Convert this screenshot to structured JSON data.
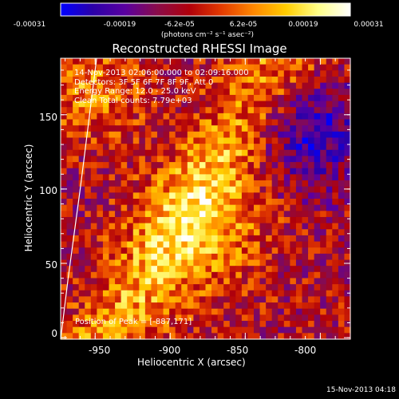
{
  "colorbar": {
    "tick_labels": [
      "-0.00031",
      "-0.00019",
      "-6.2e-05",
      "6.2e-05",
      "0.00019",
      "0.00031"
    ],
    "units": "(photons cm⁻² s⁻¹ asec⁻²)",
    "colormap": [
      "#0000ff",
      "#2b00a8",
      "#5a00a0",
      "#8a0c4a",
      "#b0000a",
      "#e33a00",
      "#ff8800",
      "#ffcc00",
      "#ffff88",
      "#ffffff"
    ]
  },
  "title": "Reconstructed RHESSI Image",
  "info": {
    "line1": "14-Nov-2013 02:06:00.000 to 02:09:16.000",
    "line2": "Detectors: 3F 5F 6F 7F 8F 9F, Att 0",
    "line3": "Energy Range: 12.0 - 25.0 keV",
    "line4": "Clean      Total counts: 7.79e+03",
    "peak": "Position of Peak = [-887,171]"
  },
  "footer": "15-Nov-2013 04:18",
  "chart_data": {
    "type": "heatmap",
    "title": "Reconstructed RHESSI Image",
    "xlabel": "Heliocentric X (arcsec)",
    "ylabel": "Heliocentric Y (arcsec)",
    "xlim": [
      -973,
      -780
    ],
    "ylim": [
      -1,
      188
    ],
    "xticks": [
      -950,
      -900,
      -850,
      -800
    ],
    "yticks": [
      0,
      50,
      100,
      150
    ],
    "colorbar_range": [
      -0.00031,
      0.00031
    ],
    "peak_position": [
      -887,
      171
    ],
    "limb_curve": {
      "x": [
        -973,
        -968,
        -960,
        -955,
        -949
      ],
      "y": [
        -1,
        40,
        100,
        140,
        188
      ]
    }
  }
}
